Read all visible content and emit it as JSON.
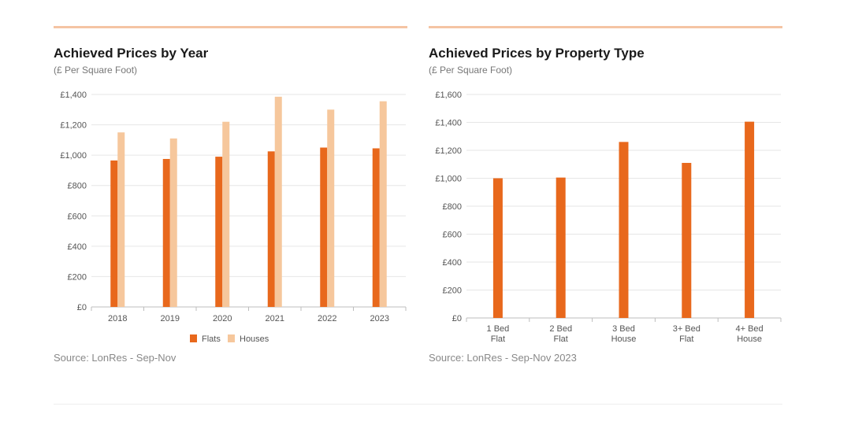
{
  "colors": {
    "flats": "#e8681c",
    "houses": "#f6c79c",
    "rule": "#f5c4a3",
    "grid": "#e6e6e6",
    "axis": "#bdbdbd",
    "bottom_rule": "#eeeeee"
  },
  "charts": [
    {
      "title": "Achieved Prices by Year",
      "subtitle": "(£ Per Square Foot)",
      "source": "Source: LonRes - Sep-Nov"
    },
    {
      "title": "Achieved Prices by Property Type",
      "subtitle": "(£ Per Square Foot)",
      "source": "Source: LonRes - Sep-Nov 2023"
    }
  ],
  "chart_data": [
    {
      "type": "bar",
      "title": "Achieved Prices by Year",
      "subtitle": "(£ Per Square Foot)",
      "categories": [
        "2018",
        "2019",
        "2020",
        "2021",
        "2022",
        "2023"
      ],
      "series": [
        {
          "name": "Flats",
          "values": [
            965,
            975,
            990,
            1025,
            1050,
            1045
          ]
        },
        {
          "name": "Houses",
          "values": [
            1150,
            1110,
            1220,
            1385,
            1300,
            1355
          ]
        }
      ],
      "ylim": [
        0,
        1400
      ],
      "yticks": [
        0,
        200,
        400,
        600,
        800,
        1000,
        1200,
        1400
      ],
      "ytick_labels": [
        "£0",
        "£200",
        "£400",
        "£600",
        "£800",
        "£1,000",
        "£1,200",
        "£1,400"
      ],
      "legend": "bottom",
      "grid": true
    },
    {
      "type": "bar",
      "title": "Achieved Prices by Property Type",
      "subtitle": "(£ Per Square Foot)",
      "categories": [
        "1 Bed Flat",
        "2 Bed Flat",
        "3 Bed House",
        "3+ Bed Flat",
        "4+ Bed House"
      ],
      "category_lines": [
        [
          "1 Bed",
          "Flat"
        ],
        [
          "2 Bed",
          "Flat"
        ],
        [
          "3 Bed",
          "House"
        ],
        [
          "3+ Bed",
          "Flat"
        ],
        [
          "4+ Bed",
          "House"
        ]
      ],
      "values": [
        1000,
        1005,
        1260,
        1110,
        1405
      ],
      "ylim": [
        0,
        1600
      ],
      "yticks": [
        0,
        200,
        400,
        600,
        800,
        1000,
        1200,
        1400,
        1600
      ],
      "ytick_labels": [
        "£0",
        "£200",
        "£400",
        "£600",
        "£800",
        "£1,000",
        "£1,200",
        "£1,400",
        "£1,600"
      ],
      "grid": true
    }
  ]
}
